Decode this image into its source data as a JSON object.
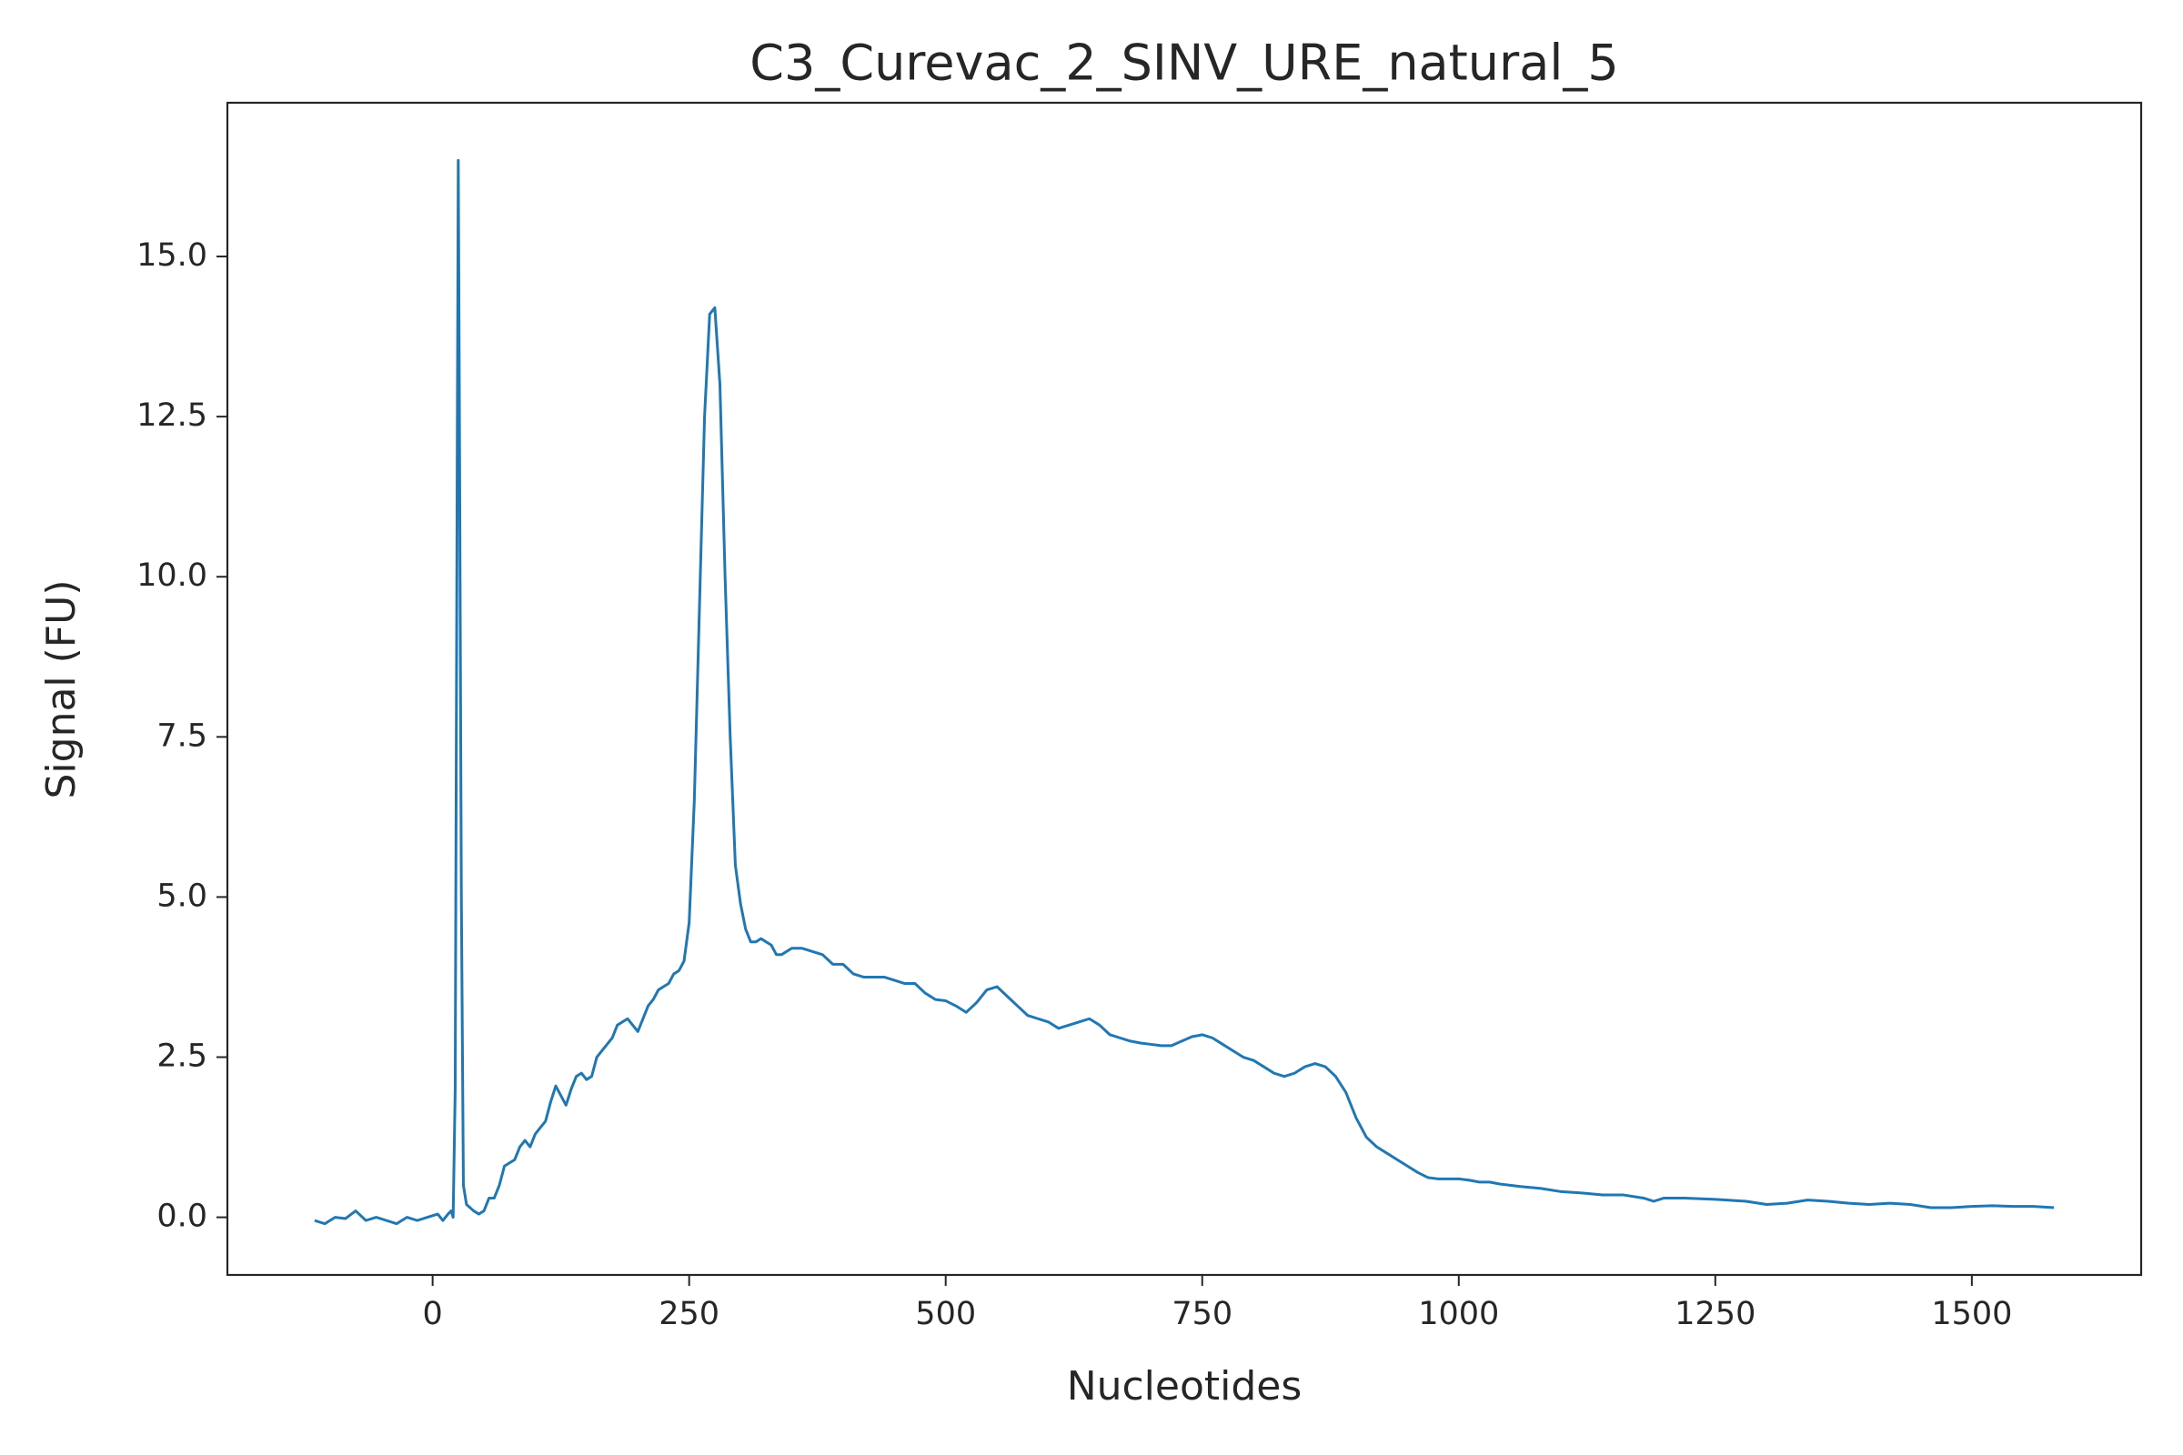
{
  "chart_data": {
    "type": "line",
    "title": "C3_Curevac_2_SINV_URE_natural_5",
    "xlabel": "Nucleotides",
    "ylabel": "Signal (FU)",
    "x": [
      -115,
      -105,
      -95,
      -85,
      -75,
      -65,
      -55,
      -45,
      -35,
      -25,
      -15,
      -5,
      5,
      10,
      15,
      18,
      20,
      22,
      24,
      25,
      26,
      28,
      30,
      33,
      40,
      45,
      50,
      55,
      60,
      65,
      70,
      75,
      80,
      85,
      90,
      95,
      100,
      105,
      110,
      115,
      120,
      125,
      130,
      135,
      140,
      145,
      150,
      155,
      160,
      165,
      170,
      175,
      180,
      185,
      190,
      195,
      200,
      205,
      210,
      215,
      220,
      225,
      230,
      235,
      240,
      245,
      250,
      255,
      260,
      265,
      270,
      275,
      280,
      285,
      290,
      295,
      300,
      305,
      310,
      315,
      320,
      325,
      330,
      335,
      340,
      350,
      360,
      370,
      380,
      390,
      400,
      410,
      420,
      430,
      440,
      450,
      460,
      470,
      480,
      490,
      500,
      510,
      520,
      530,
      540,
      550,
      560,
      570,
      580,
      590,
      600,
      610,
      620,
      630,
      640,
      650,
      660,
      670,
      680,
      690,
      700,
      710,
      720,
      730,
      740,
      750,
      760,
      770,
      780,
      790,
      800,
      810,
      820,
      830,
      840,
      850,
      860,
      870,
      880,
      890,
      900,
      910,
      920,
      930,
      940,
      950,
      960,
      970,
      980,
      990,
      1000,
      1010,
      1020,
      1030,
      1040,
      1050,
      1060,
      1080,
      1100,
      1120,
      1140,
      1160,
      1180,
      1190,
      1200,
      1220,
      1250,
      1280,
      1300,
      1320,
      1340,
      1360,
      1380,
      1400,
      1420,
      1440,
      1460,
      1480,
      1500,
      1520,
      1540,
      1560,
      1580
    ],
    "series": [
      {
        "color": "#1f77b4",
        "values": [
          -0.05,
          -0.1,
          0.0,
          -0.02,
          0.1,
          -0.05,
          0.0,
          -0.05,
          -0.1,
          0.0,
          -0.05,
          0.0,
          0.05,
          -0.05,
          0.05,
          0.1,
          0.0,
          2,
          12,
          16.5,
          13,
          5,
          0.5,
          0.2,
          0.1,
          0.05,
          0.1,
          0.3,
          0.3,
          0.5,
          0.8,
          0.85,
          0.9,
          1.1,
          1.2,
          1.1,
          1.3,
          1.4,
          1.5,
          1.8,
          2.05,
          1.9,
          1.75,
          2.0,
          2.2,
          2.25,
          2.15,
          2.2,
          2.5,
          2.6,
          2.7,
          2.8,
          3.0,
          3.05,
          3.1,
          3.0,
          2.9,
          3.1,
          3.3,
          3.4,
          3.55,
          3.6,
          3.65,
          3.8,
          3.85,
          4.0,
          4.6,
          6.5,
          9.5,
          12.5,
          14.1,
          14.2,
          13.0,
          10,
          7.5,
          5.5,
          4.9,
          4.5,
          4.3,
          4.3,
          4.35,
          4.3,
          4.25,
          4.1,
          4.1,
          4.2,
          4.2,
          4.15,
          4.1,
          3.95,
          3.95,
          3.8,
          3.75,
          3.75,
          3.75,
          3.7,
          3.65,
          3.65,
          3.5,
          3.4,
          3.38,
          3.3,
          3.2,
          3.35,
          3.55,
          3.6,
          3.45,
          3.3,
          3.15,
          3.1,
          3.05,
          2.95,
          3.0,
          3.05,
          3.1,
          3.0,
          2.85,
          2.8,
          2.75,
          2.72,
          2.7,
          2.68,
          2.68,
          2.75,
          2.82,
          2.85,
          2.8,
          2.7,
          2.6,
          2.5,
          2.45,
          2.35,
          2.25,
          2.2,
          2.25,
          2.35,
          2.4,
          2.35,
          2.2,
          1.95,
          1.55,
          1.25,
          1.1,
          1.0,
          0.9,
          0.8,
          0.7,
          0.62,
          0.6,
          0.6,
          0.6,
          0.58,
          0.55,
          0.55,
          0.52,
          0.5,
          0.48,
          0.45,
          0.4,
          0.38,
          0.35,
          0.35,
          0.3,
          0.25,
          0.3,
          0.3,
          0.28,
          0.25,
          0.2,
          0.22,
          0.27,
          0.25,
          0.22,
          0.2,
          0.22,
          0.2,
          0.15,
          0.15,
          0.17,
          0.18,
          0.17,
          0.17,
          0.15
        ]
      }
    ],
    "xlim": [
      -200,
      1665
    ],
    "ylim": [
      -0.9,
      17.4
    ],
    "xticks": [
      0,
      250,
      500,
      750,
      1000,
      1250,
      1500
    ],
    "yticks": [
      {
        "value": 0,
        "label": "0.0"
      },
      2.5,
      {
        "value": 5,
        "label": "5.0"
      },
      7.5,
      {
        "value": 10,
        "label": "10.0"
      },
      12.5,
      {
        "value": 15,
        "label": "15.0"
      }
    ]
  }
}
